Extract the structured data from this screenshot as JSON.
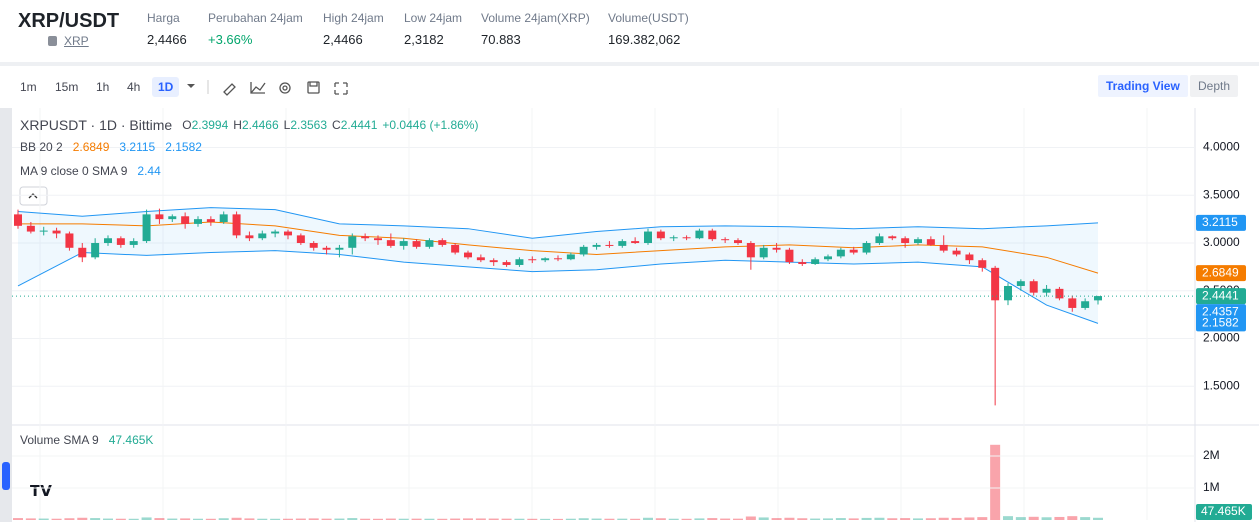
{
  "header": {
    "symbol": "XRP/USDT",
    "coin": "XRP",
    "stats": [
      {
        "label": "Harga",
        "value": "2,4466"
      },
      {
        "label": "Perubahan 24jam",
        "value": "+3.66%"
      },
      {
        "label": "High 24jam",
        "value": "2,4466"
      },
      {
        "label": "Low 24jam",
        "value": "2,3182"
      },
      {
        "label": "Volume 24jam(XRP)",
        "value": "70.883"
      },
      {
        "label": "Volume(USDT)",
        "value": "169.382,062"
      }
    ]
  },
  "toolbar": {
    "intervals": [
      "1m",
      "15m",
      "1h",
      "4h",
      "1D"
    ],
    "active_interval": 4,
    "views": [
      "Trading View",
      "Depth"
    ]
  },
  "chart_data": {
    "type": "candlestick",
    "title": "XRPUSDT · 1D · Bittime",
    "ohlc": [
      {
        "label": "O",
        "value": "2.3994"
      },
      {
        "label": "H",
        "value": "2.4466"
      },
      {
        "label": "L",
        "value": "2.3563"
      },
      {
        "label": "C",
        "value": "2.4441"
      }
    ],
    "change": "+0.0446 (+1.86%)",
    "indicators": [
      {
        "name": "BB 20 2",
        "values": [
          {
            "text": "2.6849",
            "color": "#f57c00"
          },
          {
            "text": "3.2115",
            "color": "#2196f3"
          },
          {
            "text": "2.1582",
            "color": "#2196f3"
          }
        ]
      },
      {
        "name": "MA 9 close 0 SMA 9",
        "values": [
          {
            "text": "2.44",
            "color": "#2196f3"
          }
        ]
      }
    ],
    "ylim": [
      1.094,
      4.414
    ],
    "yticks": [
      {
        "value": 4,
        "label": "4.0000"
      },
      {
        "value": 3.5,
        "label": "3.5000"
      },
      {
        "value": 3,
        "label": "3.0000"
      },
      {
        "value": 2.5,
        "label": "2.5000"
      },
      {
        "value": 2,
        "label": "2.0000"
      },
      {
        "value": 1.5,
        "label": "1.5000"
      }
    ],
    "price_tags": [
      {
        "value": 3.2115,
        "label": "3.2115",
        "color": "#2196f3"
      },
      {
        "value": 2.6849,
        "label": "2.6849",
        "color": "#f57c00"
      },
      {
        "value": 2.4441,
        "label": "2.4441",
        "color": "#22ab94"
      },
      {
        "value": 2.4357,
        "label": "2.4357",
        "color": "#2196f3"
      },
      {
        "value": 2.1582,
        "label": "2.1582",
        "color": "#2196f3"
      }
    ],
    "up_color": "#22ab94",
    "down_color": "#f23645",
    "candles": [
      [
        3.3,
        3.35,
        3.15,
        3.18
      ],
      [
        3.18,
        3.22,
        3.1,
        3.12
      ],
      [
        3.12,
        3.17,
        3.08,
        3.13
      ],
      [
        3.13,
        3.16,
        3.05,
        3.1
      ],
      [
        3.1,
        3.12,
        2.92,
        2.95
      ],
      [
        2.95,
        3.0,
        2.8,
        2.85
      ],
      [
        2.85,
        3.05,
        2.83,
        3.0
      ],
      [
        3.0,
        3.08,
        2.97,
        3.05
      ],
      [
        3.05,
        3.07,
        2.95,
        2.98
      ],
      [
        2.98,
        3.05,
        2.95,
        3.02
      ],
      [
        3.02,
        3.35,
        3.0,
        3.3
      ],
      [
        3.3,
        3.36,
        3.2,
        3.25
      ],
      [
        3.25,
        3.3,
        3.22,
        3.28
      ],
      [
        3.28,
        3.32,
        3.15,
        3.2
      ],
      [
        3.2,
        3.28,
        3.17,
        3.25
      ],
      [
        3.25,
        3.28,
        3.18,
        3.22
      ],
      [
        3.22,
        3.33,
        3.2,
        3.3
      ],
      [
        3.3,
        3.33,
        3.05,
        3.08
      ],
      [
        3.08,
        3.12,
        3.02,
        3.05
      ],
      [
        3.05,
        3.13,
        3.03,
        3.1
      ],
      [
        3.1,
        3.14,
        3.06,
        3.12
      ],
      [
        3.12,
        3.14,
        3.04,
        3.08
      ],
      [
        3.08,
        3.1,
        2.98,
        3.0
      ],
      [
        3.0,
        3.02,
        2.92,
        2.95
      ],
      [
        2.95,
        2.97,
        2.88,
        2.93
      ],
      [
        2.93,
        2.98,
        2.85,
        2.95
      ],
      [
        2.95,
        3.1,
        2.88,
        3.07
      ],
      [
        3.07,
        3.1,
        3.02,
        3.05
      ],
      [
        3.05,
        3.08,
        2.98,
        3.03
      ],
      [
        3.03,
        3.1,
        2.95,
        2.97
      ],
      [
        2.97,
        3.05,
        2.93,
        3.02
      ],
      [
        3.02,
        3.04,
        2.94,
        2.96
      ],
      [
        2.96,
        3.05,
        2.94,
        3.03
      ],
      [
        3.03,
        3.05,
        2.96,
        2.98
      ],
      [
        2.98,
        3.0,
        2.88,
        2.9
      ],
      [
        2.9,
        2.92,
        2.83,
        2.85
      ],
      [
        2.85,
        2.88,
        2.8,
        2.82
      ],
      [
        2.82,
        2.84,
        2.76,
        2.8
      ],
      [
        2.8,
        2.82,
        2.75,
        2.77
      ],
      [
        2.77,
        2.85,
        2.75,
        2.83
      ],
      [
        2.83,
        2.86,
        2.79,
        2.82
      ],
      [
        2.82,
        2.85,
        2.8,
        2.84
      ],
      [
        2.84,
        2.87,
        2.81,
        2.83
      ],
      [
        2.83,
        2.9,
        2.82,
        2.88
      ],
      [
        2.88,
        2.98,
        2.86,
        2.96
      ],
      [
        2.96,
        3.0,
        2.93,
        2.98
      ],
      [
        2.98,
        3.02,
        2.95,
        2.97
      ],
      [
        2.97,
        3.04,
        2.95,
        3.02
      ],
      [
        3.02,
        3.06,
        2.99,
        3.0
      ],
      [
        3.0,
        3.15,
        2.98,
        3.12
      ],
      [
        3.12,
        3.14,
        3.03,
        3.05
      ],
      [
        3.05,
        3.08,
        3.02,
        3.06
      ],
      [
        3.06,
        3.08,
        3.03,
        3.05
      ],
      [
        3.05,
        3.15,
        3.04,
        3.13
      ],
      [
        3.13,
        3.15,
        3.02,
        3.04
      ],
      [
        3.04,
        3.06,
        3.0,
        3.03
      ],
      [
        3.03,
        3.05,
        2.98,
        3.0
      ],
      [
        3.0,
        3.02,
        2.72,
        2.85
      ],
      [
        2.85,
        2.98,
        2.83,
        2.95
      ],
      [
        2.95,
        3.0,
        2.9,
        2.93
      ],
      [
        2.93,
        2.95,
        2.78,
        2.8
      ],
      [
        2.8,
        2.83,
        2.76,
        2.78
      ],
      [
        2.78,
        2.85,
        2.77,
        2.83
      ],
      [
        2.83,
        2.88,
        2.81,
        2.86
      ],
      [
        2.86,
        2.95,
        2.84,
        2.93
      ],
      [
        2.93,
        2.96,
        2.88,
        2.9
      ],
      [
        2.9,
        3.02,
        2.88,
        3.0
      ],
      [
        3.0,
        3.1,
        2.98,
        3.07
      ],
      [
        3.07,
        3.08,
        3.03,
        3.05
      ],
      [
        3.05,
        3.07,
        2.95,
        3.0
      ],
      [
        3.0,
        3.06,
        2.98,
        3.04
      ],
      [
        3.04,
        3.07,
        2.97,
        2.98
      ],
      [
        2.98,
        3.08,
        2.9,
        2.92
      ],
      [
        2.92,
        2.95,
        2.86,
        2.88
      ],
      [
        2.88,
        2.9,
        2.78,
        2.82
      ],
      [
        2.82,
        2.84,
        2.7,
        2.74
      ],
      [
        2.74,
        2.76,
        1.3,
        2.4
      ],
      [
        2.4,
        2.58,
        2.35,
        2.55
      ],
      [
        2.55,
        2.62,
        2.5,
        2.6
      ],
      [
        2.6,
        2.62,
        2.45,
        2.48
      ],
      [
        2.48,
        2.56,
        2.44,
        2.52
      ],
      [
        2.52,
        2.54,
        2.4,
        2.42
      ],
      [
        2.42,
        2.45,
        2.28,
        2.32
      ],
      [
        2.32,
        2.42,
        2.3,
        2.39
      ],
      [
        2.3994,
        2.4466,
        2.3563,
        2.4441
      ]
    ],
    "band_index": [
      0,
      5,
      10,
      15,
      20,
      25,
      30,
      35,
      40,
      45,
      50,
      55,
      60,
      65,
      70,
      75,
      80,
      84
    ],
    "bb_upper": [
      3.33,
      3.28,
      3.33,
      3.37,
      3.35,
      3.2,
      3.18,
      3.15,
      3.05,
      3.12,
      3.17,
      3.18,
      3.17,
      3.15,
      3.17,
      3.15,
      3.18,
      3.2115
    ],
    "bb_basis": [
      3.2,
      3.2,
      3.18,
      3.22,
      3.18,
      3.08,
      3.05,
      2.98,
      2.92,
      2.88,
      2.92,
      2.96,
      2.98,
      2.95,
      2.98,
      2.96,
      2.85,
      2.6849
    ],
    "bb_lower": [
      2.55,
      2.9,
      2.87,
      2.9,
      2.92,
      2.88,
      2.8,
      2.75,
      2.7,
      2.72,
      2.78,
      2.82,
      2.8,
      2.78,
      2.8,
      2.75,
      2.35,
      2.1582
    ],
    "volume_title": "Volume SMA 9",
    "volume_sma": "47.465K",
    "volume_ylim": [
      0,
      2875000
    ],
    "volume_ticks": [
      {
        "value": 2000000,
        "label": "2M"
      },
      {
        "value": 1000000,
        "label": "1M"
      }
    ],
    "volume_tag": {
      "value": 47465,
      "label": "47.465K"
    },
    "volumes": [
      60000,
      50000,
      45000,
      40000,
      55000,
      70000,
      60000,
      45000,
      40000,
      38000,
      80000,
      60000,
      45000,
      50000,
      40000,
      38000,
      55000,
      70000,
      50000,
      40000,
      38000,
      40000,
      45000,
      50000,
      42000,
      45000,
      60000,
      40000,
      38000,
      45000,
      40000,
      42000,
      40000,
      38000,
      45000,
      50000,
      48000,
      45000,
      42000,
      40000,
      38000,
      36000,
      35000,
      40000,
      55000,
      45000,
      40000,
      42000,
      38000,
      70000,
      55000,
      40000,
      38000,
      50000,
      60000,
      45000,
      42000,
      110000,
      80000,
      60000,
      70000,
      55000,
      45000,
      50000,
      60000,
      50000,
      65000,
      70000,
      55000,
      60000,
      50000,
      55000,
      70000,
      65000,
      80000,
      90000,
      2350000,
      120000,
      90000,
      100000,
      85000,
      95000,
      120000,
      90000,
      70000
    ]
  }
}
